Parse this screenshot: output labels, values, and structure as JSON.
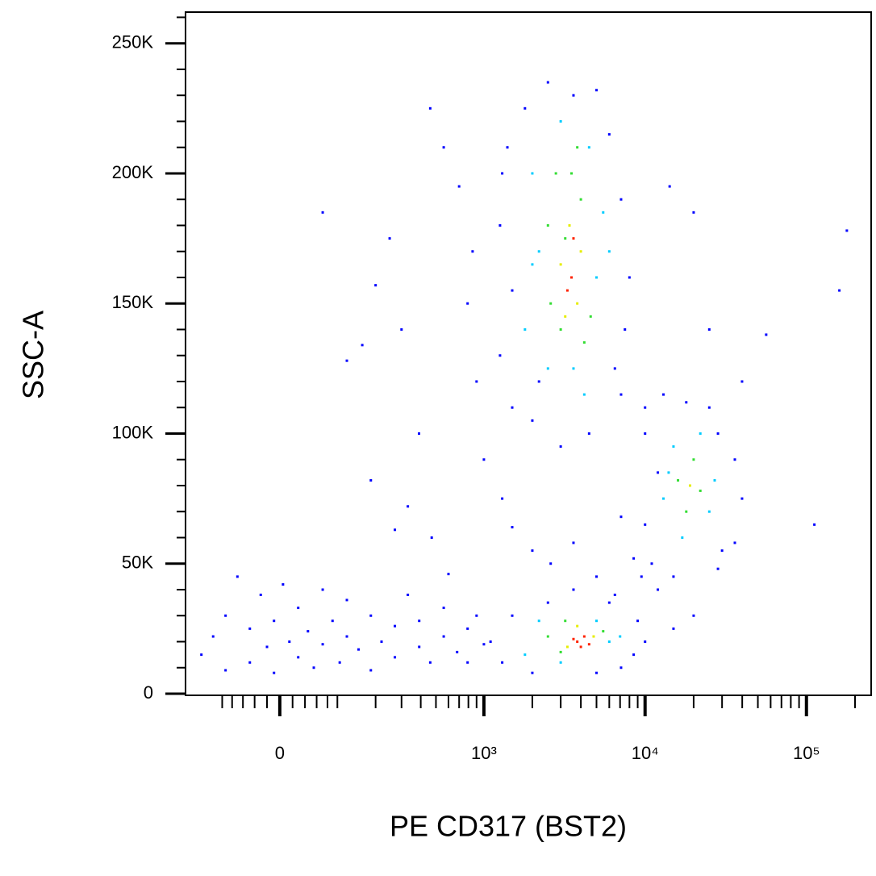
{
  "chart_data": {
    "type": "scatter",
    "x_label": "PE CD317 (BST2)",
    "y_label": "SSC-A",
    "xscale": "biexponential",
    "xlim": [
      -195,
      251800
    ],
    "xticks": [
      0,
      {
        "value": 1000,
        "label": "10³"
      },
      {
        "value": 10000,
        "label": "10⁴"
      },
      {
        "value": 100000,
        "label": "10⁵"
      }
    ],
    "xminorticks": [
      -100,
      -80,
      -60,
      -40,
      -20,
      20,
      40,
      60,
      80,
      100,
      200,
      300,
      400,
      500,
      600,
      700,
      800,
      900,
      2000,
      3000,
      4000,
      5000,
      6000,
      7000,
      8000,
      9000,
      20000,
      30000,
      40000,
      50000,
      60000,
      70000,
      80000,
      90000,
      200000
    ],
    "ylim": [
      0,
      262000
    ],
    "yticks": [
      0,
      {
        "value": 50000,
        "label": "50K"
      },
      {
        "value": 100000,
        "label": "100K"
      },
      {
        "value": 150000,
        "label": "150K"
      },
      {
        "value": 200000,
        "label": "200K"
      },
      {
        "value": 250000,
        "label": "250K"
      }
    ],
    "yminorticks": [
      10000,
      20000,
      30000,
      40000,
      60000,
      70000,
      80000,
      90000,
      110000,
      120000,
      130000,
      140000,
      160000,
      170000,
      180000,
      190000,
      210000,
      220000,
      230000,
      240000,
      260000
    ],
    "series": [
      {
        "color": "#0000ff",
        "x": [
          -149,
          -120,
          -93,
          -93,
          -70,
          -48,
          -48,
          -30,
          -20,
          -9,
          -9,
          5,
          15,
          29,
          29,
          45,
          55,
          71,
          71,
          90,
          105,
          121,
          121,
          150,
          185,
          185,
          220,
          271,
          271,
          330,
          391,
          391,
          460,
          560,
          560,
          680,
          791,
          791,
          900,
          1000,
          71,
          121,
          160,
          200,
          250,
          300,
          390,
          460,
          560,
          700,
          791,
          900,
          185,
          271,
          330,
          470,
          600,
          850,
          1000,
          1300,
          1500,
          2000,
          2600,
          3600,
          5000,
          6000,
          7100,
          8500,
          10000,
          12000,
          14200,
          20000,
          25000,
          39900,
          56300,
          112000,
          178000,
          160000,
          28300,
          36000,
          1260,
          1260,
          1400,
          1500,
          1800,
          2000,
          2500,
          3000,
          3600,
          4500,
          5000,
          6000,
          7100,
          7500,
          7100,
          6500,
          1500,
          1300,
          2200,
          8000,
          1100,
          1300,
          1500,
          2000,
          2500,
          3600,
          5000,
          6500,
          8500,
          9000,
          10000,
          7100,
          10000,
          10000,
          11000,
          13000,
          15000,
          18000,
          25000,
          30000,
          36000,
          39900,
          28300,
          12000,
          20000,
          15000,
          9500
        ],
        "values": [
          15000,
          22000,
          9000,
          30000,
          45000,
          12000,
          25000,
          38000,
          18000,
          8000,
          28000,
          42000,
          20000,
          14000,
          33000,
          24000,
          10000,
          40000,
          19000,
          28000,
          12000,
          22000,
          36000,
          17000,
          30000,
          9000,
          20000,
          26000,
          14000,
          38000,
          18000,
          28000,
          12000,
          22000,
          33000,
          16000,
          25000,
          12000,
          30000,
          19000,
          185000,
          128000,
          134000,
          157000,
          175000,
          140000,
          100000,
          225000,
          210000,
          195000,
          150000,
          120000,
          82000,
          63000,
          72000,
          60000,
          46000,
          170000,
          90000,
          75000,
          64000,
          55000,
          50000,
          58000,
          45000,
          35000,
          68000,
          52000,
          110000,
          40000,
          195000,
          185000,
          140000,
          120000,
          138000,
          65000,
          178000,
          155000,
          48000,
          58000,
          130000,
          180000,
          210000,
          110000,
          225000,
          105000,
          235000,
          95000,
          230000,
          100000,
          232000,
          215000,
          190000,
          140000,
          115000,
          125000,
          155000,
          200000,
          120000,
          160000,
          20000,
          12000,
          30000,
          8000,
          35000,
          40000,
          8000,
          38000,
          15000,
          28000,
          20000,
          10000,
          100000,
          65000,
          50000,
          115000,
          45000,
          112000,
          110000,
          55000,
          90000,
          75000,
          100000,
          85000,
          30000,
          25000,
          45000
        ]
      },
      {
        "color": "#00ccff",
        "x": [
          1800,
          2000,
          2200,
          2500,
          3000,
          3600,
          4500,
          5000,
          5500,
          2000,
          4200,
          6000,
          1800,
          2200,
          3000,
          5000,
          6000,
          7000,
          13000,
          15000,
          17000,
          22000,
          25000,
          14000,
          27000
        ],
        "values": [
          140000,
          200000,
          170000,
          125000,
          220000,
          125000,
          210000,
          160000,
          185000,
          165000,
          115000,
          170000,
          15000,
          28000,
          12000,
          28000,
          20000,
          22000,
          75000,
          95000,
          60000,
          100000,
          70000,
          85000,
          82000
        ]
      },
      {
        "color": "#33dd33",
        "x": [
          2500,
          3000,
          2800,
          3200,
          4000,
          4200,
          3500,
          2600,
          4600,
          3800,
          2500,
          3000,
          5500,
          3200,
          16000,
          20000,
          18000,
          22000
        ],
        "values": [
          180000,
          140000,
          200000,
          175000,
          190000,
          135000,
          200000,
          150000,
          145000,
          210000,
          22000,
          16000,
          24000,
          28000,
          82000,
          90000,
          70000,
          78000
        ]
      },
      {
        "color": "#e6ee00",
        "x": [
          3000,
          3400,
          3800,
          3200,
          4000,
          3300,
          4800,
          3800,
          19000
        ],
        "values": [
          165000,
          180000,
          150000,
          145000,
          170000,
          18000,
          22000,
          26000,
          80000
        ]
      },
      {
        "color": "#ff2200",
        "x": [
          3500,
          3300,
          3600,
          3800,
          4200,
          4000,
          3600,
          4500
        ],
        "values": [
          160000,
          155000,
          175000,
          20000,
          22000,
          18000,
          21000,
          19000
        ]
      }
    ]
  }
}
